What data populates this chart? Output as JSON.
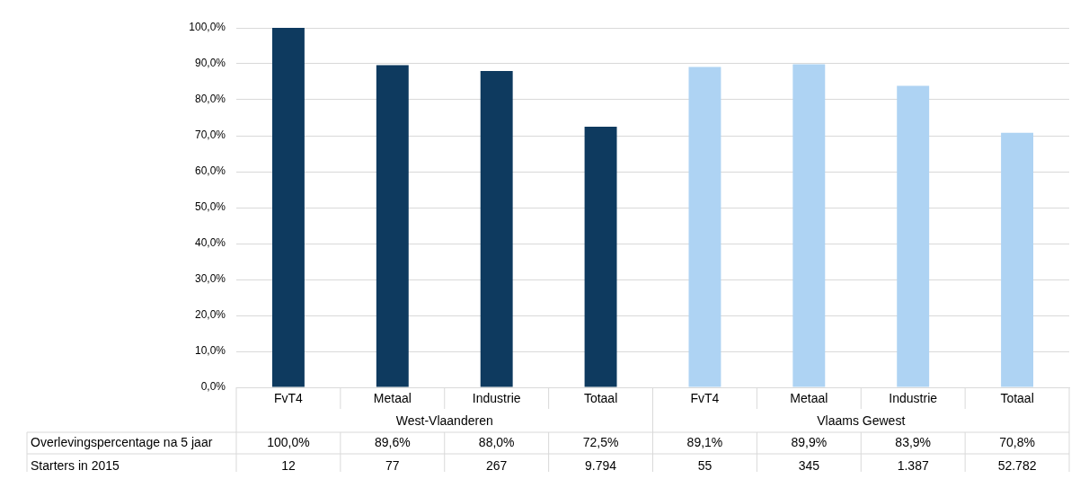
{
  "chart_data": {
    "type": "bar",
    "categories": [
      "FvT4",
      "Metaal",
      "Industrie",
      "Totaal",
      "FvT4",
      "Metaal",
      "Industrie",
      "Totaal"
    ],
    "series": [
      {
        "name": "Overlevingspercentage na 5 jaar",
        "colors": [
          "#0e3a5f",
          "#0e3a5f",
          "#0e3a5f",
          "#0e3a5f",
          "#aed3f3",
          "#aed3f3",
          "#aed3f3",
          "#aed3f3"
        ],
        "values": [
          100,
          89.6,
          88.0,
          72.5,
          89.1,
          89.9,
          83.9,
          70.8
        ],
        "value_labels": [
          "100,0%",
          "89,6%",
          "88,0%",
          "72,5%",
          "89,1%",
          "89,9%",
          "83,9%",
          "70,8%"
        ]
      }
    ],
    "ylim": [
      0,
      100
    ],
    "yticks": [
      {
        "value": 0,
        "label": "0,0%"
      },
      {
        "value": 10,
        "label": "10,0%"
      },
      {
        "value": 20,
        "label": "20,0%"
      },
      {
        "value": 30,
        "label": "30,0%"
      },
      {
        "value": 40,
        "label": "40,0%"
      },
      {
        "value": 50,
        "label": "50,0%"
      },
      {
        "value": 60,
        "label": "60,0%"
      },
      {
        "value": 70,
        "label": "70,0%"
      },
      {
        "value": 80,
        "label": "80,0%"
      },
      {
        "value": 90,
        "label": "90,0%"
      },
      {
        "value": 100,
        "label": "100,0%"
      }
    ],
    "grid": "y",
    "legend": false,
    "annotations": [
      "West-Vlaanderen",
      "Vlaams Gewest",
      "Starters in 2015",
      "12",
      "77",
      "267",
      "9.794",
      "55",
      "345",
      "1.387",
      "52.782"
    ]
  }
}
